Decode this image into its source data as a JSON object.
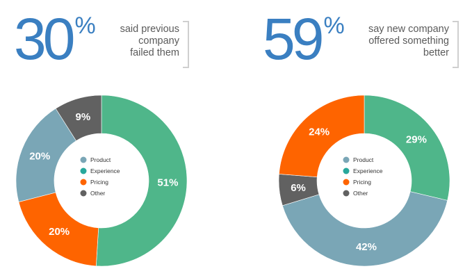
{
  "colors": {
    "product": "#7aa6b6",
    "experience": "#4fb68a",
    "pricing": "#fe6400",
    "other": "#616161",
    "legend_experience_dot": "#27a89c",
    "accent_blue": "#3a7fc1"
  },
  "legend": {
    "items": [
      {
        "label": "Product",
        "color": "#7aa6b6"
      },
      {
        "label": "Experience",
        "color": "#27a89c"
      },
      {
        "label": "Pricing",
        "color": "#fe6400"
      },
      {
        "label": "Other",
        "color": "#616161"
      }
    ]
  },
  "chart_data": [
    {
      "type": "pie",
      "headline_value": "30",
      "headline_unit": "%",
      "caption": [
        "said previous",
        "company",
        "failed them"
      ],
      "slices": [
        {
          "category": "Experience",
          "value": 51,
          "label": "51%",
          "color": "#4fb68a"
        },
        {
          "category": "Pricing",
          "value": 20,
          "label": "20%",
          "color": "#fe6400"
        },
        {
          "category": "Product",
          "value": 20,
          "label": "20%",
          "color": "#7aa6b6"
        },
        {
          "category": "Other",
          "value": 9,
          "label": "9%",
          "color": "#616161"
        }
      ],
      "legend_position": "center"
    },
    {
      "type": "pie",
      "headline_value": "59",
      "headline_unit": "%",
      "caption": [
        "say new company",
        "offered something",
        "better"
      ],
      "slices": [
        {
          "category": "Experience",
          "value": 29,
          "label": "29%",
          "color": "#4fb68a"
        },
        {
          "category": "Product",
          "value": 42,
          "label": "42%",
          "color": "#7aa6b6"
        },
        {
          "category": "Other",
          "value": 6,
          "label": "6%",
          "color": "#616161"
        },
        {
          "category": "Pricing",
          "value": 24,
          "label": "24%",
          "color": "#fe6400"
        }
      ],
      "legend_position": "center"
    }
  ]
}
